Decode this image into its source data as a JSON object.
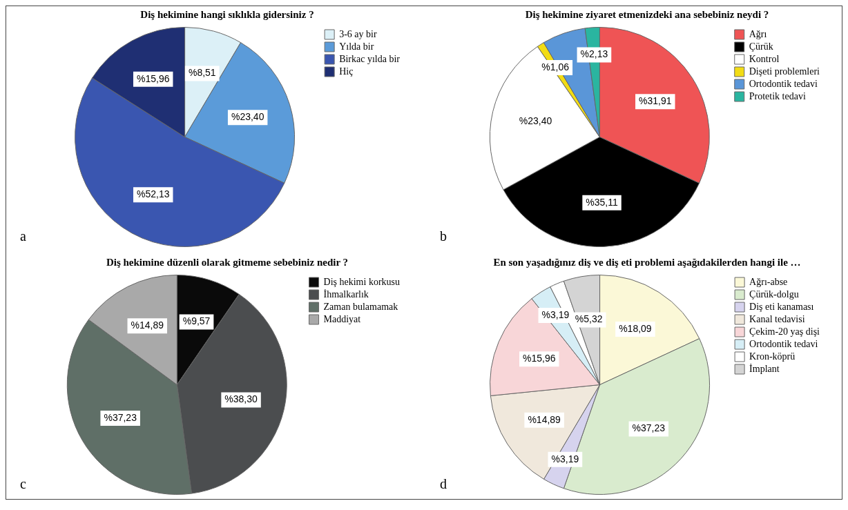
{
  "chart_data": [
    {
      "type": "pie",
      "title": "Diş hekimine hangi sıklıkla gidersiniz ?",
      "categories": [
        "3-6 ay bir",
        "Yılda bir",
        "Birkac yılda bir",
        "Hiç"
      ],
      "values": [
        8.51,
        23.4,
        52.13,
        15.96
      ],
      "value_labels": [
        "%8,51",
        "%23,40",
        "%52,13",
        "%15,96"
      ],
      "colors": [
        "#dcf0f7",
        "#5b9bd9",
        "#3a56b0",
        "#1f2f73"
      ],
      "legend": "right",
      "annotations": [
        "a"
      ]
    },
    {
      "type": "pie",
      "title": "Diş hekimine ziyaret etmenizdeki ana sebebiniz neydi ?",
      "categories": [
        "Ağrı",
        "Çürük",
        "Kontrol",
        "Dişeti problemleri",
        "Ortodontik tedavi",
        "Protetik tedavi"
      ],
      "values": [
        31.91,
        35.11,
        23.4,
        1.06,
        6.38,
        2.13
      ],
      "value_labels": [
        "%31,91",
        "%35,11",
        "%23,40",
        "%1,06",
        null,
        "%2,13"
      ],
      "colors": [
        "#ef5455",
        "#000000",
        "#ffffff",
        "#f2dc14",
        "#5a96d8",
        "#2ab5a0"
      ],
      "legend": "right",
      "annotations": [
        "b"
      ]
    },
    {
      "type": "pie",
      "title": "Diş hekimine düzenli olarak gitmeme sebebiniz nedir ?",
      "categories": [
        "Diş hekimi korkusu",
        "İhmalkarlık",
        "Zaman bulamamak",
        "Maddiyat"
      ],
      "values": [
        9.57,
        38.3,
        37.23,
        14.89
      ],
      "value_labels": [
        "%9,57",
        "%38,30",
        "%37,23",
        "%14,89"
      ],
      "colors": [
        "#0a0a0a",
        "#4b4d4f",
        "#5f6f67",
        "#a9a9a9"
      ],
      "legend": "right",
      "annotations": [
        "c"
      ]
    },
    {
      "type": "pie",
      "title": "En son yaşadığınız diş ve diş eti problemi aşağıdakilerden hangi ile …",
      "categories": [
        "Ağrı-abse",
        "Çürük-dolgu",
        "Diş eti kanaması",
        "Kanal tedavisi",
        "Çekim-20 yaş dişi",
        "Ortodontik tedavi",
        "Kron-köprü",
        "İmplant"
      ],
      "values": [
        18.09,
        37.23,
        3.19,
        14.89,
        15.96,
        3.19,
        2.13,
        5.32
      ],
      "value_labels": [
        "%18,09",
        "%37,23",
        "%3,19",
        "%14,89",
        "%15,96",
        "%3,19",
        null,
        "%5,32"
      ],
      "colors": [
        "#fbf8d7",
        "#d9ebce",
        "#d6d3ee",
        "#f0e8dc",
        "#f8d6d8",
        "#d6eef6",
        "#ffffff",
        "#d4d4d4"
      ],
      "legend": "right",
      "annotations": [
        "d"
      ]
    }
  ]
}
